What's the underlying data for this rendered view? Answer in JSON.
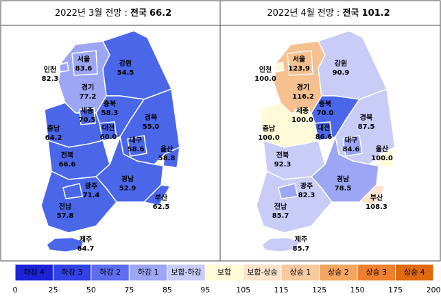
{
  "panels": [
    {
      "title": "2022년 3월 전망 :",
      "national_label": "전국",
      "national_value": "66.2",
      "regions": [
        {
          "name": "서울",
          "value": "83.6",
          "color": "#9ca6f4"
        },
        {
          "name": "인천",
          "value": "82.3",
          "color": "#9ca6f4"
        },
        {
          "name": "경기",
          "value": "77.2",
          "color": "#9ca6f4"
        },
        {
          "name": "강원",
          "value": "54.5",
          "color": "#4a67ea"
        },
        {
          "name": "세종",
          "value": "70.5",
          "color": "#4a67ea"
        },
        {
          "name": "충북",
          "value": "58.3",
          "color": "#4a67ea"
        },
        {
          "name": "충남",
          "value": "64.2",
          "color": "#4a67ea"
        },
        {
          "name": "대전",
          "value": "60.0",
          "color": "#4a67ea"
        },
        {
          "name": "경북",
          "value": "55.0",
          "color": "#4a67ea"
        },
        {
          "name": "대구",
          "value": "58.6",
          "color": "#4a67ea"
        },
        {
          "name": "울산",
          "value": "58.8",
          "color": "#4a67ea"
        },
        {
          "name": "전북",
          "value": "66.6",
          "color": "#4a67ea"
        },
        {
          "name": "경남",
          "value": "52.9",
          "color": "#4a67ea"
        },
        {
          "name": "부산",
          "value": "62.5",
          "color": "#4a67ea"
        },
        {
          "name": "광주",
          "value": "71.4",
          "color": "#4a67ea"
        },
        {
          "name": "전남",
          "value": "57.8",
          "color": "#4a67ea"
        },
        {
          "name": "제주",
          "value": "64.7",
          "color": "#4a67ea"
        }
      ]
    },
    {
      "title": "2022년 4월 전망 :",
      "national_label": "전국",
      "national_value": "101.2",
      "regions": [
        {
          "name": "서울",
          "value": "123.9",
          "color": "#f6c090"
        },
        {
          "name": "인천",
          "value": "100.0",
          "color": "#fffbd8"
        },
        {
          "name": "경기",
          "value": "116.2",
          "color": "#f6c090"
        },
        {
          "name": "강원",
          "value": "90.9",
          "color": "#c9ccf6"
        },
        {
          "name": "세종",
          "value": "100.0",
          "color": "#fffbd8"
        },
        {
          "name": "충북",
          "value": "70.0",
          "color": "#4a67ea"
        },
        {
          "name": "충남",
          "value": "100.0",
          "color": "#fffbd8"
        },
        {
          "name": "대전",
          "value": "86.6",
          "color": "#4a67ea"
        },
        {
          "name": "경북",
          "value": "87.5",
          "color": "#c9ccf6"
        },
        {
          "name": "대구",
          "value": "84.6",
          "color": "#9ca6f4"
        },
        {
          "name": "울산",
          "value": "100.0",
          "color": "#fffbd8"
        },
        {
          "name": "전북",
          "value": "92.3",
          "color": "#c9ccf6"
        },
        {
          "name": "경남",
          "value": "78.5",
          "color": "#9ca6f4"
        },
        {
          "name": "부산",
          "value": "108.3",
          "color": "#fde3cc"
        },
        {
          "name": "광주",
          "value": "82.3",
          "color": "#9ca6f4"
        },
        {
          "name": "전남",
          "value": "85.7",
          "color": "#c9ccf6"
        },
        {
          "name": "제주",
          "value": "85.7",
          "color": "#c9ccf6"
        }
      ]
    }
  ],
  "legend": {
    "items": [
      {
        "label": "하강 4",
        "color": "#1c22d8"
      },
      {
        "label": "하강 3",
        "color": "#3342e4"
      },
      {
        "label": "하강 2",
        "color": "#5f6df0"
      },
      {
        "label": "하강 1",
        "color": "#9ca6f4"
      },
      {
        "label": "보합-하강",
        "color": "#c9ccf6"
      },
      {
        "label": "보합",
        "color": "#fffbd8"
      },
      {
        "label": "보합-상승",
        "color": "#fde3cc"
      },
      {
        "label": "상승 1",
        "color": "#f9c9a0"
      },
      {
        "label": "상승 2",
        "color": "#f5a560"
      },
      {
        "label": "상승 3",
        "color": "#ef8030"
      },
      {
        "label": "상승 4",
        "color": "#e06a10"
      }
    ],
    "ticks": [
      0,
      25,
      50,
      75,
      85,
      95,
      105,
      115,
      125,
      150,
      175,
      200
    ]
  }
}
